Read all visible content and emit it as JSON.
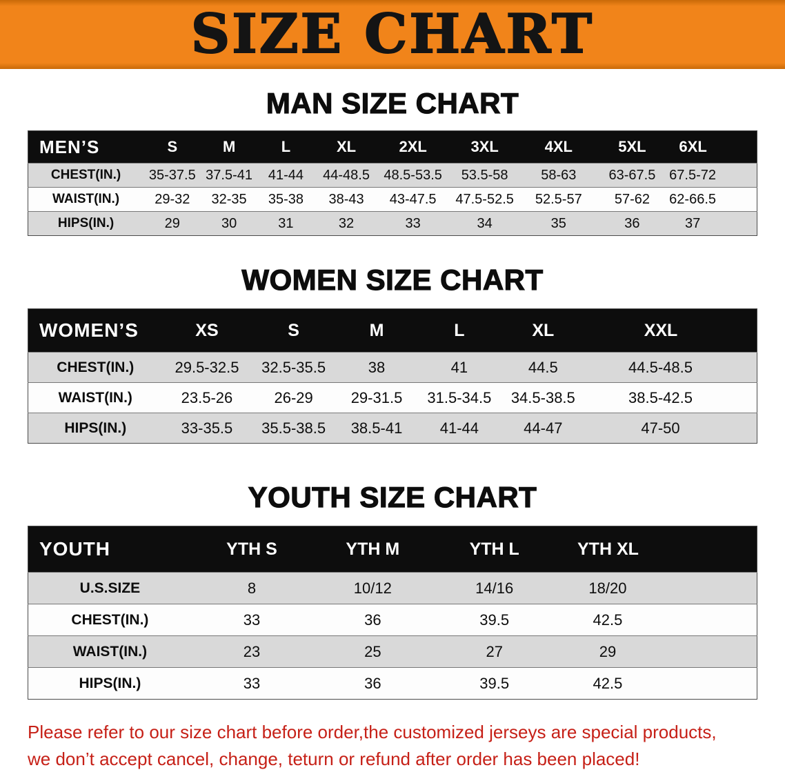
{
  "banner": {
    "title": "SIZE CHART"
  },
  "theme": {
    "banner_bg": "#f1841a",
    "banner_edge": "#c96a08",
    "header_bg": "#0d0d0d",
    "header_text": "#ffffff",
    "row_alt_bg": "#d9d9d9",
    "row_bg": "#fdfdfd",
    "notice_color": "#c62017",
    "text_color": "#0d0d0d"
  },
  "sections": {
    "men": {
      "heading": "MAN SIZE CHART"
    },
    "women": {
      "heading": "WOMEN SIZE CHART"
    },
    "youth": {
      "heading": "YOUTH SIZE CHART"
    }
  },
  "notice": {
    "line1": "Please refer to our size chart before order,the customized jerseys are special products,",
    "line2": "we don’t accept cancel, change, teturn or refund after order has been placed!"
  },
  "chart_data": [
    {
      "type": "table",
      "title": "MAN SIZE CHART",
      "header": [
        "MEN’S",
        "S",
        "M",
        "L",
        "XL",
        "2XL",
        "3XL",
        "4XL",
        "5XL",
        "6XL"
      ],
      "rows": [
        [
          "CHEST(IN.)",
          "35-37.5",
          "37.5-41",
          "41-44",
          "44-48.5",
          "48.5-53.5",
          "53.5-58",
          "58-63",
          "63-67.5",
          "67.5-72"
        ],
        [
          "WAIST(IN.)",
          "29-32",
          "32-35",
          "35-38",
          "38-43",
          "43-47.5",
          "47.5-52.5",
          "52.5-57",
          "57-62",
          "62-66.5"
        ],
        [
          "HIPS(IN.)",
          "29",
          "30",
          "31",
          "32",
          "33",
          "34",
          "35",
          "36",
          "37"
        ]
      ]
    },
    {
      "type": "table",
      "title": "WOMEN SIZE CHART",
      "header": [
        "WOMEN’S",
        "XS",
        "S",
        "M",
        "L",
        "XL",
        "XXL"
      ],
      "rows": [
        [
          "CHEST(IN.)",
          "29.5-32.5",
          "32.5-35.5",
          "38",
          "41",
          "44.5",
          "44.5-48.5"
        ],
        [
          "WAIST(IN.)",
          "23.5-26",
          "26-29",
          "29-31.5",
          "31.5-34.5",
          "34.5-38.5",
          "38.5-42.5"
        ],
        [
          "HIPS(IN.)",
          "33-35.5",
          "35.5-38.5",
          "38.5-41",
          "41-44",
          "44-47",
          "47-50"
        ]
      ]
    },
    {
      "type": "table",
      "title": "YOUTH SIZE CHART",
      "header": [
        "YOUTH",
        "YTH S",
        "YTH M",
        "YTH L",
        "YTH XL"
      ],
      "rows": [
        [
          "U.S.SIZE",
          "8",
          "10/12",
          "14/16",
          "18/20"
        ],
        [
          "CHEST(IN.)",
          "33",
          "36",
          "39.5",
          "42.5"
        ],
        [
          "WAIST(IN.)",
          "23",
          "25",
          "27",
          "29"
        ],
        [
          "HIPS(IN.)",
          "33",
          "36",
          "39.5",
          "42.5"
        ]
      ]
    }
  ]
}
